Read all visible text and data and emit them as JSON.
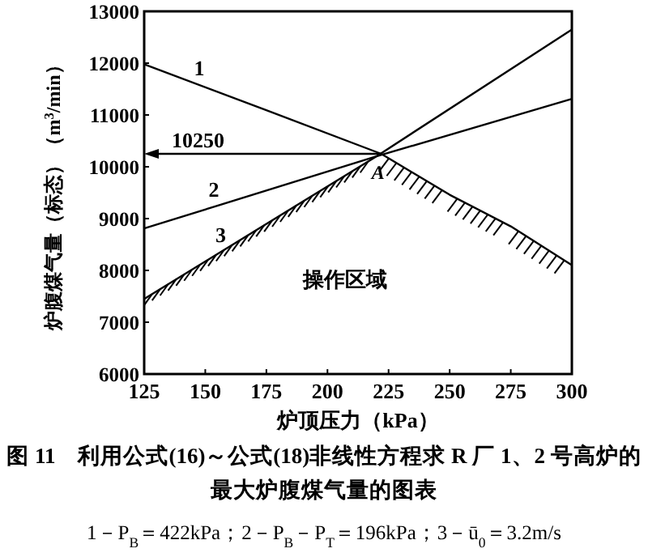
{
  "chart_data": {
    "type": "line",
    "title": "图 11　利用公式(16)～公式(18)非线性方程求 R 厂 1、2 号高炉的最大炉腹煤气量的图表",
    "subtitle": "1－P$_{B}$＝422kPa；2－P$_{B}$－P$_{T}$＝196kPa；3－ū$_{0}$＝3.2m/s",
    "xlabel": "炉顶压力（kPa）",
    "ylabel": "炉腹煤气量（标态）（m$^{3}$/min）",
    "xlim": [
      125,
      300
    ],
    "ylim": [
      6000,
      13000
    ],
    "xticks": [
      125,
      150,
      175,
      200,
      225,
      250,
      275,
      300
    ],
    "yticks": [
      6000,
      7000,
      8000,
      9000,
      10000,
      11000,
      12000,
      13000
    ],
    "marker": "none",
    "line_style": "solid",
    "series": [
      {
        "name": "1",
        "color": "#000000",
        "x": [
          125,
          175,
          222,
          250,
          275,
          300
        ],
        "values": [
          11980,
          11090,
          10250,
          9460,
          8850,
          8100
        ]
      },
      {
        "name": "2",
        "color": "#000000",
        "x": [
          125,
          220,
          300
        ],
        "values": [
          8810,
          10200,
          11310
        ]
      },
      {
        "name": "3",
        "color": "#000000",
        "x": [
          125,
          220,
          300
        ],
        "values": [
          7450,
          10200,
          12650
        ]
      }
    ],
    "annotations": [
      {
        "text": "10250",
        "x": 222,
        "y": 10250
      },
      {
        "text": "A",
        "x": 220,
        "y": 10200
      },
      "操作区域"
    ]
  }
}
